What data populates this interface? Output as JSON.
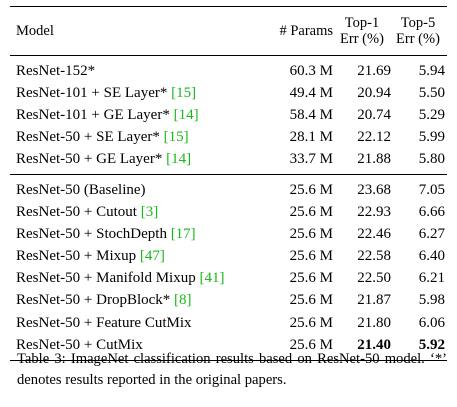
{
  "table": {
    "header": {
      "model": "Model",
      "params": "# Params",
      "top1_line1": "Top-1",
      "top1_line2": "Err (%)",
      "top5_line1": "Top-5",
      "top5_line2": "Err (%)"
    },
    "group1": [
      {
        "model": "ResNet-152*",
        "cite": "",
        "params": "60.3 M",
        "top1": "21.69",
        "top5": "5.94"
      },
      {
        "model": "ResNet-101 + SE Layer* ",
        "cite": "[15]",
        "params": "49.4 M",
        "top1": "20.94",
        "top5": "5.50"
      },
      {
        "model": "ResNet-101 + GE Layer* ",
        "cite": "[14]",
        "params": "58.4 M",
        "top1": "20.74",
        "top5": "5.29"
      },
      {
        "model": "ResNet-50 + SE Layer* ",
        "cite": "[15]",
        "params": "28.1 M",
        "top1": "22.12",
        "top5": "5.99"
      },
      {
        "model": "ResNet-50 + GE Layer* ",
        "cite": "[14]",
        "params": "33.7 M",
        "top1": "21.88",
        "top5": "5.80"
      }
    ],
    "group2": [
      {
        "model": "ResNet-50 (Baseline)",
        "cite": "",
        "params": "25.6 M",
        "top1": "23.68",
        "top5": "7.05"
      },
      {
        "model": "ResNet-50 + Cutout ",
        "cite": "[3]",
        "params": "25.6 M",
        "top1": "22.93",
        "top5": "6.66"
      },
      {
        "model": "ResNet-50 + StochDepth ",
        "cite": "[17]",
        "params": "25.6 M",
        "top1": "22.46",
        "top5": "6.27"
      },
      {
        "model": "ResNet-50 + Mixup ",
        "cite": "[47]",
        "params": "25.6 M",
        "top1": "22.58",
        "top5": "6.40"
      },
      {
        "model": "ResNet-50 + Manifold Mixup ",
        "cite": "[41]",
        "params": "25.6 M",
        "top1": "22.50",
        "top5": "6.21"
      },
      {
        "model": "ResNet-50 + DropBlock* ",
        "cite": "[8]",
        "params": "25.6 M",
        "top1": "21.87",
        "top5": "5.98"
      },
      {
        "model": "ResNet-50 + Feature CutMix",
        "cite": "",
        "params": "25.6 M",
        "top1": "21.80",
        "top5": "6.06"
      },
      {
        "model": "ResNet-50 + CutMix",
        "cite": "",
        "params": "25.6 M",
        "top1": "21.40",
        "top5": "5.92"
      }
    ],
    "cite_color": "#1ab81a"
  },
  "caption": "Table 3: ImageNet classification results based on ResNet-50 model. ‘*’ denotes results reported in the original papers."
}
